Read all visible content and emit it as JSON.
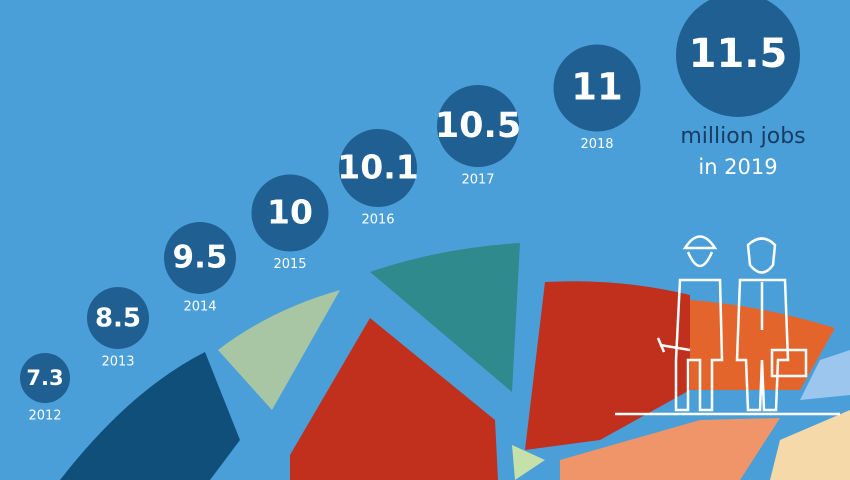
{
  "chart_data": {
    "type": "bubble",
    "categories": [
      "2012",
      "2013",
      "2014",
      "2015",
      "2016",
      "2017",
      "2018",
      "in 2019"
    ],
    "values": [
      7.3,
      8.5,
      9.5,
      10,
      10.1,
      10.5,
      11,
      11.5
    ],
    "unit_label": "million jobs",
    "color": "#1f5f91"
  }
}
